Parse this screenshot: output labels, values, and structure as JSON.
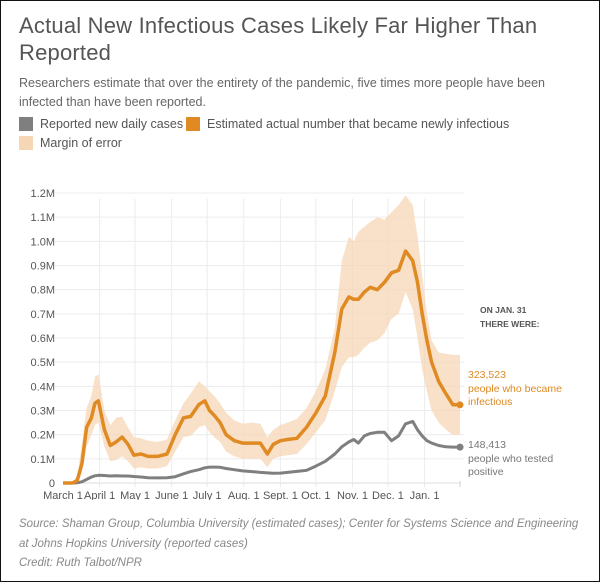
{
  "title": "Actual New Infectious Cases Likely Far Higher Than Reported",
  "subtitle": "Researchers estimate that over the entirety of the pandemic, five times more people have been infected than have been reported.",
  "legend": [
    {
      "label": "Reported new daily cases",
      "color": "#7f7f7f"
    },
    {
      "label": "Estimated actual number that became newly infectious",
      "color": "#e08a23"
    },
    {
      "label": "Margin of error",
      "color": "#f6d7b5"
    }
  ],
  "annotation": {
    "heading_line1": "ON JAN. 31",
    "heading_line2": "THERE WERE:",
    "estimated_value": "323,523",
    "estimated_line1": "people who became",
    "estimated_line2": "infectious",
    "reported_value": "148,413",
    "reported_line1": "people who tested",
    "reported_line2": "positive"
  },
  "source": "Source: Shaman Group, Columbia University (estimated cases); Center for Systems Science and Engineering at Johns Hopkins University (reported cases)",
  "credit": "Credit: Ruth Talbot/NPR",
  "chart_data": {
    "type": "line",
    "title": "Actual New Infectious Cases Likely Far Higher Than Reported",
    "xlabel": "",
    "ylabel": "",
    "x_unit": "days since March 1, 2020",
    "xlim": [
      0,
      336
    ],
    "ylim": [
      0,
      1200000
    ],
    "grid": true,
    "legend_position": "top-left",
    "x_ticks": [
      {
        "label": "March 1",
        "day": 0
      },
      {
        "label": "April 1",
        "day": 31
      },
      {
        "label": "May 1",
        "day": 61
      },
      {
        "label": "June 1",
        "day": 92
      },
      {
        "label": "July 1",
        "day": 122
      },
      {
        "label": "Aug. 1",
        "day": 153
      },
      {
        "label": "Sept. 1",
        "day": 184
      },
      {
        "label": "Oct. 1",
        "day": 214
      },
      {
        "label": "Nov. 1",
        "day": 245
      },
      {
        "label": "Dec. 1",
        "day": 275
      },
      {
        "label": "Jan. 1",
        "day": 306
      }
    ],
    "y_ticks": [
      {
        "label": "0",
        "value": 0
      },
      {
        "label": "0.1M",
        "value": 100000
      },
      {
        "label": "0.2M",
        "value": 200000
      },
      {
        "label": "0.3M",
        "value": 300000
      },
      {
        "label": "0.4M",
        "value": 400000
      },
      {
        "label": "0.5M",
        "value": 500000
      },
      {
        "label": "0.6M",
        "value": 600000
      },
      {
        "label": "0.7M",
        "value": 700000
      },
      {
        "label": "0.8M",
        "value": 800000
      },
      {
        "label": "0.9M",
        "value": 900000
      },
      {
        "label": "1.0M",
        "value": 1000000
      },
      {
        "label": "1.1M",
        "value": 1100000
      },
      {
        "label": "1.2M",
        "value": 1200000
      }
    ],
    "x": [
      0,
      8,
      12,
      16,
      20,
      24,
      27,
      30,
      35,
      40,
      45,
      50,
      55,
      60,
      66,
      72,
      80,
      88,
      95,
      102,
      108,
      115,
      120,
      124,
      128,
      133,
      138,
      145,
      152,
      160,
      167,
      173,
      178,
      184,
      190,
      198,
      206,
      214,
      222,
      230,
      236,
      242,
      246,
      250,
      255,
      260,
      266,
      272,
      278,
      284,
      290,
      296,
      300,
      304,
      308,
      312,
      318,
      324,
      330,
      336
    ],
    "series": [
      {
        "name": "Estimated actual number that became newly infectious",
        "color": "#e08a23",
        "values": [
          0,
          0,
          10000,
          80000,
          230000,
          270000,
          330000,
          340000,
          220000,
          155000,
          170000,
          190000,
          160000,
          115000,
          120000,
          110000,
          110000,
          120000,
          200000,
          270000,
          275000,
          325000,
          340000,
          300000,
          280000,
          250000,
          200000,
          175000,
          165000,
          165000,
          165000,
          120000,
          160000,
          175000,
          180000,
          185000,
          230000,
          290000,
          360000,
          540000,
          720000,
          770000,
          760000,
          760000,
          790000,
          810000,
          800000,
          830000,
          870000,
          880000,
          960000,
          920000,
          830000,
          700000,
          590000,
          500000,
          420000,
          370000,
          323523,
          323523
        ]
      },
      {
        "name": "Margin of error (upper)",
        "color": "#f6d7b5",
        "values": [
          0,
          5000,
          30000,
          160000,
          310000,
          360000,
          440000,
          450000,
          300000,
          240000,
          270000,
          275000,
          230000,
          190000,
          185000,
          175000,
          170000,
          180000,
          260000,
          330000,
          370000,
          420000,
          400000,
          380000,
          360000,
          330000,
          290000,
          260000,
          245000,
          250000,
          245000,
          190000,
          220000,
          240000,
          250000,
          265000,
          310000,
          380000,
          470000,
          640000,
          920000,
          1020000,
          1000000,
          1040000,
          1060000,
          1080000,
          1100000,
          1090000,
          1120000,
          1150000,
          1190000,
          1150000,
          1020000,
          860000,
          700000,
          590000,
          540000,
          535000,
          530000,
          530000
        ]
      },
      {
        "name": "Margin of error (lower)",
        "color": "#f6d7b5",
        "values": [
          0,
          0,
          0,
          40000,
          150000,
          200000,
          240000,
          250000,
          150000,
          90000,
          95000,
          110000,
          90000,
          60000,
          65000,
          60000,
          60000,
          70000,
          130000,
          190000,
          195000,
          230000,
          240000,
          210000,
          190000,
          170000,
          130000,
          110000,
          100000,
          100000,
          100000,
          65000,
          100000,
          110000,
          115000,
          120000,
          160000,
          210000,
          260000,
          380000,
          480000,
          520000,
          520000,
          530000,
          560000,
          580000,
          590000,
          620000,
          680000,
          700000,
          790000,
          720000,
          600000,
          470000,
          380000,
          300000,
          250000,
          220000,
          200000,
          200000
        ]
      },
      {
        "name": "Reported new daily cases",
        "color": "#7f7f7f",
        "values": [
          0,
          0,
          1000,
          5000,
          15000,
          25000,
          30000,
          32000,
          31000,
          29000,
          30000,
          29000,
          29000,
          27000,
          25000,
          22000,
          21000,
          22000,
          26000,
          38000,
          47000,
          55000,
          63000,
          66000,
          66000,
          65000,
          60000,
          55000,
          50000,
          47000,
          44000,
          42000,
          40000,
          41000,
          44000,
          48000,
          52000,
          70000,
          90000,
          120000,
          150000,
          170000,
          180000,
          165000,
          195000,
          205000,
          210000,
          210000,
          175000,
          195000,
          245000,
          255000,
          220000,
          195000,
          175000,
          165000,
          155000,
          150000,
          148413,
          148413
        ]
      }
    ],
    "end_points": [
      {
        "series": "Estimated actual number that became newly infectious",
        "date": "Jan. 31",
        "value": 323523
      },
      {
        "series": "Reported new daily cases",
        "date": "Jan. 31",
        "value": 148413
      }
    ]
  }
}
